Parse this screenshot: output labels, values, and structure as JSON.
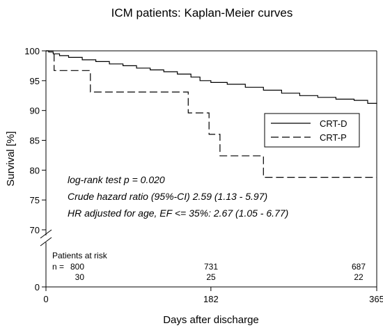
{
  "chart_data": {
    "type": "line",
    "title": "ICM patients: Kaplan-Meier curves",
    "xlabel": "Days after discharge",
    "ylabel": "Survival [%]",
    "xlim": [
      0,
      365
    ],
    "ylim_upper": [
      70,
      100
    ],
    "ylim_lower": [
      0,
      70
    ],
    "x_ticks": [
      {
        "value": 0,
        "label": "0"
      },
      {
        "value": 182,
        "label": "182"
      },
      {
        "value": 365,
        "label": "365"
      }
    ],
    "y_ticks": [
      {
        "value": 100,
        "label": "100"
      },
      {
        "value": 95,
        "label": "95"
      },
      {
        "value": 90,
        "label": "90"
      },
      {
        "value": 85,
        "label": "85"
      },
      {
        "value": 80,
        "label": "80"
      },
      {
        "value": 75,
        "label": "75"
      },
      {
        "value": 70,
        "label": "70"
      },
      {
        "value": 0,
        "label": "0"
      }
    ],
    "axis_break": true,
    "grid": false,
    "legend_position": "right",
    "series": [
      {
        "name": "CRT-D",
        "line_style": "solid",
        "color": "#000000",
        "x": [
          0,
          3,
          8,
          15,
          25,
          40,
          55,
          70,
          85,
          100,
          115,
          130,
          145,
          160,
          170,
          182,
          200,
          220,
          240,
          260,
          280,
          300,
          320,
          340,
          355,
          365
        ],
        "y": [
          100,
          99.8,
          99.5,
          99.2,
          98.9,
          98.5,
          98.2,
          97.8,
          97.5,
          97.1,
          96.8,
          96.5,
          96.1,
          95.6,
          95.0,
          94.7,
          94.4,
          93.9,
          93.4,
          92.9,
          92.5,
          92.2,
          91.9,
          91.7,
          91.2,
          91.1
        ]
      },
      {
        "name": "CRT-P",
        "line_style": "dashed",
        "color": "#000000",
        "x": [
          0,
          9,
          9,
          49,
          49,
          157,
          157,
          180,
          180,
          192,
          192,
          240,
          240,
          365
        ],
        "y": [
          100,
          100,
          96.7,
          96.7,
          93.1,
          93.1,
          89.6,
          89.6,
          86,
          86,
          82.4,
          82.4,
          78.8,
          78.8
        ]
      }
    ],
    "annotations": [
      "log-rank test p = 0.020",
      "Crude hazard ratio (95%-CI) 2.59 (1.13 - 5.97)",
      "HR adjusted for age, EF <= 35%: 2.67 (1.05 - 6.77)"
    ],
    "risk_table": {
      "title": "Patients at risk",
      "prefix": "n =",
      "timepoints": [
        0,
        182,
        365
      ],
      "rows": [
        {
          "series": "CRT-D",
          "values": [
            "800",
            "731",
            "687"
          ]
        },
        {
          "series": "CRT-P",
          "values": [
            "30",
            "25",
            "22"
          ]
        }
      ]
    }
  }
}
